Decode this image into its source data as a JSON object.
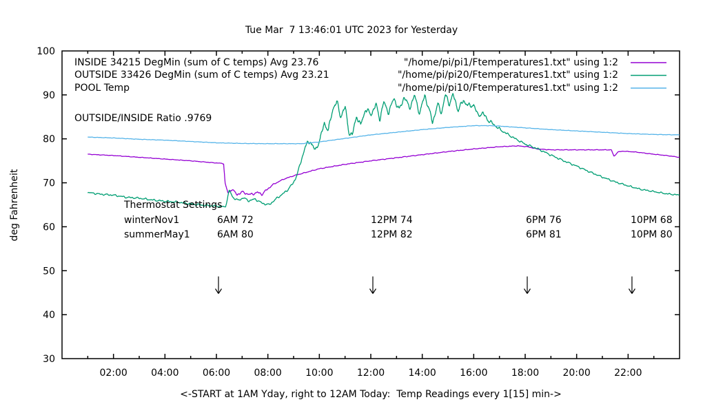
{
  "title": "Tue Mar  7 13:46:01 UTC 2023 for Yesterday",
  "ratio_text": "OUTSIDE/INSIDE Ratio .9769",
  "xlabel": "<-START at 1AM Yday, right to 12AM Today:  Temp Readings every 1[15] min->",
  "ylabel": "deg Fahrenheit",
  "legend": [
    {
      "label": "INSIDE 34215 DegMin (sum of C temps) Avg 23.76",
      "file": "\"/home/pi/pi1/Ftemperatures1.txt\" using 1:2",
      "color": "#9400d3"
    },
    {
      "label": "OUTSIDE 33426 DegMin (sum of C temps) Avg 23.21",
      "file": "\"/home/pi/pi20/Ftemperatures1.txt\" using 1:2",
      "color": "#009e73"
    },
    {
      "label": "POOL Temp",
      "file": "\"/home/pi/pi10/Ftemperatures1.txt\" using 1:2",
      "color": "#56b4e9"
    }
  ],
  "thermostat": {
    "heading": "Thermostat Settings",
    "rows": [
      {
        "name": "winterNov1",
        "settings": [
          "6AM 72",
          "12PM 74",
          "6PM 76",
          "10PM 68"
        ]
      },
      {
        "name": "summerMay1",
        "settings": [
          "6AM 80",
          "12PM 82",
          "6PM 81",
          "10PM 80"
        ]
      }
    ]
  },
  "chart_data": {
    "type": "line",
    "title": "Tue Mar  7 13:46:01 UTC 2023 for Yesterday",
    "xlabel": "<-START at 1AM Yday, right to 12AM Today:  Temp Readings every 1[15] min->",
    "ylabel": "deg Fahrenheit",
    "xlim": [
      0,
      24
    ],
    "ylim": [
      30,
      100
    ],
    "grid": false,
    "legend_position": "top-left-inside",
    "xticks": [
      [
        2,
        "02:00"
      ],
      [
        4,
        "04:00"
      ],
      [
        6,
        "06:00"
      ],
      [
        8,
        "08:00"
      ],
      [
        10,
        "10:00"
      ],
      [
        12,
        "12:00"
      ],
      [
        14,
        "14:00"
      ],
      [
        16,
        "16:00"
      ],
      [
        18,
        "18:00"
      ],
      [
        20,
        "20:00"
      ],
      [
        22,
        "22:00"
      ]
    ],
    "minor_xtick_every_hours": 1,
    "yticks": [
      30,
      40,
      50,
      60,
      70,
      80,
      90,
      100
    ],
    "arrows": {
      "hours": [
        6.08,
        12.08,
        18.08,
        22.15
      ],
      "from_f": 48.7,
      "to_f": 44.8
    },
    "series": [
      {
        "name": "INSIDE",
        "color": "#9400d3",
        "seed": 5.1,
        "points": [
          [
            1,
            76.5
          ],
          [
            2,
            76.2
          ],
          [
            3,
            75.8
          ],
          [
            4,
            75.4
          ],
          [
            5,
            75.0
          ],
          [
            5.8,
            74.6
          ],
          [
            6.28,
            74.4
          ],
          [
            6.34,
            69.8
          ],
          [
            6.45,
            67.6
          ],
          [
            6.6,
            68.6
          ],
          [
            6.8,
            67.3
          ],
          [
            7.0,
            67.9
          ],
          [
            7.3,
            67.3
          ],
          [
            7.6,
            67.8
          ],
          [
            7.78,
            67.4
          ],
          [
            7.95,
            68.4
          ],
          [
            8.2,
            69.6
          ],
          [
            8.6,
            70.8
          ],
          [
            9,
            71.6
          ],
          [
            10,
            73.2
          ],
          [
            11,
            74.2
          ],
          [
            12,
            75.0
          ],
          [
            13,
            75.7
          ],
          [
            14,
            76.4
          ],
          [
            15,
            77.1
          ],
          [
            16,
            77.7
          ],
          [
            17,
            78.2
          ],
          [
            17.7,
            78.4
          ],
          [
            18.1,
            78.2
          ],
          [
            18.45,
            77.7
          ],
          [
            19,
            77.5
          ],
          [
            21.35,
            77.5
          ],
          [
            21.45,
            76.0
          ],
          [
            21.6,
            77.0
          ],
          [
            21.8,
            77.2
          ],
          [
            22.3,
            77.0
          ],
          [
            23,
            76.5
          ],
          [
            23.5,
            76.2
          ],
          [
            24,
            75.8
          ]
        ],
        "noise_amp": [
          [
            1,
            0.07
          ],
          [
            6.2,
            0.07
          ],
          [
            6.4,
            0.35
          ],
          [
            7.9,
            0.35
          ],
          [
            8.3,
            0.12
          ],
          [
            24,
            0.07
          ]
        ]
      },
      {
        "name": "OUTSIDE",
        "color": "#009e73",
        "seed": 2.7,
        "points": [
          [
            1,
            67.8
          ],
          [
            1.5,
            67.4
          ],
          [
            2,
            67.2
          ],
          [
            2.5,
            66.7
          ],
          [
            3,
            66.5
          ],
          [
            3.5,
            66.1
          ],
          [
            4,
            65.8
          ],
          [
            4.5,
            65.6
          ],
          [
            5,
            65.2
          ],
          [
            5.5,
            64.9
          ],
          [
            6,
            64.7
          ],
          [
            6.35,
            64.5
          ],
          [
            6.5,
            68.3
          ],
          [
            6.65,
            66.6
          ],
          [
            6.85,
            66.0
          ],
          [
            7.05,
            66.6
          ],
          [
            7.25,
            65.9
          ],
          [
            7.5,
            66.3
          ],
          [
            7.8,
            65.3
          ],
          [
            8.05,
            65.0
          ],
          [
            8.35,
            66.5
          ],
          [
            8.7,
            68.0
          ],
          [
            9,
            70.0
          ],
          [
            9.2,
            73.0
          ],
          [
            9.45,
            78.3
          ],
          [
            9.65,
            79.5
          ],
          [
            9.85,
            77.2
          ],
          [
            10.05,
            80.5
          ],
          [
            10.2,
            83.5
          ],
          [
            10.35,
            82.0
          ],
          [
            10.55,
            87.3
          ],
          [
            10.68,
            88.5
          ],
          [
            10.82,
            85.0
          ],
          [
            11.0,
            87.3
          ],
          [
            11.15,
            81.5
          ],
          [
            11.28,
            80.8
          ],
          [
            11.45,
            85.3
          ],
          [
            11.6,
            83.0
          ],
          [
            11.8,
            86.8
          ],
          [
            12.0,
            85.5
          ],
          [
            12.2,
            87.8
          ],
          [
            12.35,
            84.5
          ],
          [
            12.5,
            88.3
          ],
          [
            12.7,
            86.0
          ],
          [
            12.9,
            89.3
          ],
          [
            13.1,
            86.5
          ],
          [
            13.3,
            89.6
          ],
          [
            13.5,
            87.0
          ],
          [
            13.7,
            89.8
          ],
          [
            13.9,
            85.8
          ],
          [
            14.1,
            90.0
          ],
          [
            14.4,
            83.8
          ],
          [
            14.6,
            87.8
          ],
          [
            14.75,
            86.0
          ],
          [
            14.9,
            90.0
          ],
          [
            15.05,
            88.0
          ],
          [
            15.2,
            90.0
          ],
          [
            15.4,
            86.5
          ],
          [
            15.6,
            88.8
          ],
          [
            15.8,
            87.4
          ],
          [
            16.0,
            87.8
          ],
          [
            16.15,
            85.4
          ],
          [
            16.35,
            85.8
          ],
          [
            16.6,
            84.0
          ],
          [
            16.8,
            83.2
          ],
          [
            17,
            82.2
          ],
          [
            17.5,
            80.4
          ],
          [
            18,
            78.8
          ],
          [
            18.5,
            77.7
          ],
          [
            19,
            76.3
          ],
          [
            19.5,
            75.0
          ],
          [
            20,
            73.8
          ],
          [
            20.5,
            72.5
          ],
          [
            21,
            71.3
          ],
          [
            21.5,
            70.2
          ],
          [
            22,
            69.3
          ],
          [
            22.5,
            68.5
          ],
          [
            23,
            68.0
          ],
          [
            23.5,
            67.5
          ],
          [
            24,
            67.2
          ]
        ],
        "noise_amp": [
          [
            1,
            0.25
          ],
          [
            8.5,
            0.3
          ],
          [
            9,
            0.4
          ],
          [
            9.5,
            0.7
          ],
          [
            10,
            0.8
          ],
          [
            16,
            0.8
          ],
          [
            16.8,
            0.5
          ],
          [
            17.5,
            0.3
          ],
          [
            24,
            0.2
          ]
        ]
      },
      {
        "name": "POOL",
        "color": "#56b4e9",
        "seed": 9.3,
        "points": [
          [
            1,
            80.4
          ],
          [
            2,
            80.2
          ],
          [
            3,
            79.9
          ],
          [
            4,
            79.7
          ],
          [
            5,
            79.4
          ],
          [
            6,
            79.1
          ],
          [
            7,
            78.95
          ],
          [
            8,
            78.9
          ],
          [
            9.3,
            78.9
          ],
          [
            10,
            79.3
          ],
          [
            11,
            80.1
          ],
          [
            12,
            80.9
          ],
          [
            13,
            81.5
          ],
          [
            14,
            82.1
          ],
          [
            15,
            82.6
          ],
          [
            16,
            83.0
          ],
          [
            16.6,
            83.0
          ],
          [
            17,
            82.9
          ],
          [
            18,
            82.5
          ],
          [
            19,
            82.1
          ],
          [
            20,
            81.8
          ],
          [
            21,
            81.5
          ],
          [
            22,
            81.2
          ],
          [
            23,
            81.0
          ],
          [
            24,
            80.9
          ]
        ],
        "noise_amp": [
          [
            1,
            0.06
          ],
          [
            24,
            0.06
          ]
        ]
      }
    ]
  }
}
